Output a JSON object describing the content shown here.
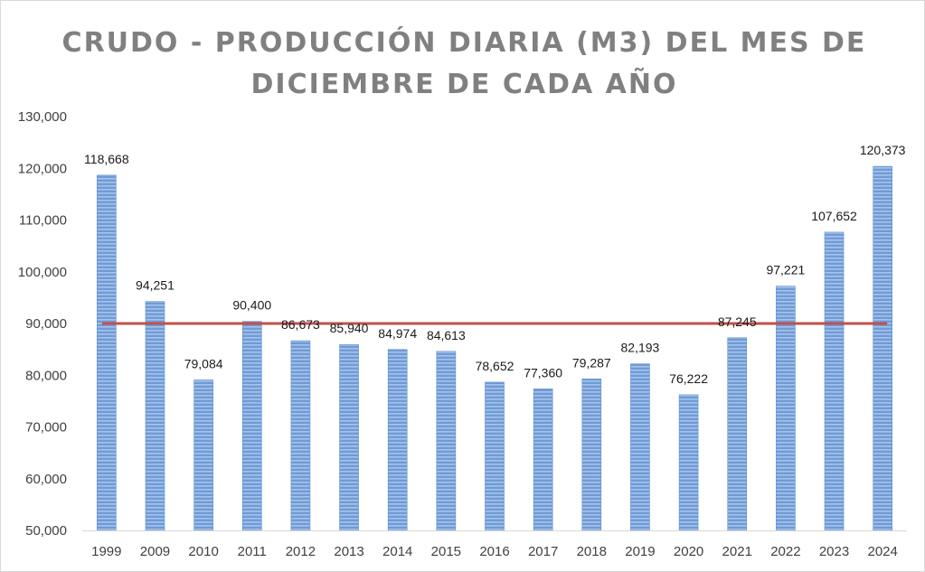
{
  "chart_data": {
    "type": "bar",
    "title": "CRUDO - PRODUCCIÓN DIARIA (M3) DEL MES DE DICIEMBRE DE CADA AÑO",
    "categories": [
      "1999",
      "2009",
      "2010",
      "2011",
      "2012",
      "2013",
      "2014",
      "2015",
      "2016",
      "2017",
      "2018",
      "2019",
      "2020",
      "2021",
      "2022",
      "2023",
      "2024"
    ],
    "values": [
      118668,
      94251,
      79084,
      90400,
      86673,
      85940,
      84974,
      84613,
      78652,
      77360,
      79287,
      82193,
      76222,
      87245,
      97221,
      107652,
      120373
    ],
    "data_labels": [
      "118,668",
      "94,251",
      "79,084",
      "90,400",
      "86,673",
      "85,940",
      "84,974",
      "84,613",
      "78,652",
      "77,360",
      "79,287",
      "82,193",
      "76,222",
      "87,245",
      "97,221",
      "107,652",
      "120,373"
    ],
    "ylim": [
      50000,
      130000
    ],
    "yticks": [
      50000,
      60000,
      70000,
      80000,
      90000,
      100000,
      110000,
      120000,
      130000
    ],
    "ytick_labels": [
      "50,000",
      "60,000",
      "70,000",
      "80,000",
      "90,000",
      "100,000",
      "110,000",
      "120,000",
      "130,000"
    ],
    "reference_line": {
      "value": 90000,
      "color": "#c0504d"
    },
    "bar_color": "#5b8ed0",
    "grid": false,
    "legend": "none"
  }
}
